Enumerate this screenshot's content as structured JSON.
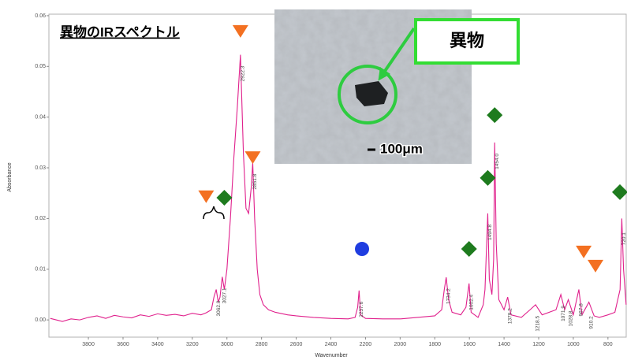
{
  "chart_data": {
    "type": "line",
    "title": "異物のIRスペクトル",
    "x_label": "Wavenumber",
    "y_label": "Absorbance",
    "xlim": [
      4028,
      690
    ],
    "ylim": [
      -0.0034,
      0.0603
    ],
    "xticks": [
      3800,
      3600,
      3400,
      3200,
      3000,
      2800,
      2600,
      2400,
      2200,
      2000,
      1800,
      1600,
      1400,
      1200,
      1000,
      800
    ],
    "yticks": [
      {
        "value": 0,
        "label": "0.00"
      },
      {
        "value": 0.01,
        "label": "0.01"
      },
      {
        "value": 0.02,
        "label": "0.02"
      },
      {
        "value": 0.03,
        "label": "0.03"
      },
      {
        "value": 0.04,
        "label": "0.04"
      },
      {
        "value": 0.05,
        "label": "0.05"
      },
      {
        "value": 0.06,
        "label": "0.06"
      }
    ],
    "grid": false,
    "series": [
      {
        "color": "#e0208c",
        "x": [
          4020,
          3950,
          3900,
          3850,
          3800,
          3750,
          3700,
          3650,
          3600,
          3550,
          3500,
          3450,
          3400,
          3350,
          3300,
          3250,
          3200,
          3150,
          3120,
          3090,
          3075,
          3062,
          3050,
          3040,
          3027,
          3015,
          3000,
          2980,
          2960,
          2940,
          2922,
          2905,
          2890,
          2875,
          2860,
          2851,
          2840,
          2825,
          2810,
          2790,
          2760,
          2720,
          2650,
          2600,
          2500,
          2400,
          2300,
          2260,
          2245,
          2237,
          2228,
          2200,
          2100,
          2000,
          1900,
          1800,
          1760,
          1745,
          1734,
          1720,
          1700,
          1650,
          1620,
          1602,
          1590,
          1550,
          1520,
          1510,
          1494,
          1485,
          1470,
          1460,
          1454,
          1445,
          1430,
          1400,
          1379,
          1360,
          1300,
          1250,
          1218,
          1180,
          1100,
          1072,
          1050,
          1029,
          1000,
          968,
          950,
          910,
          880,
          850,
          800,
          760,
          730,
          720,
          710,
          695
        ],
        "values": [
          0.0003,
          -0.0003,
          0.0002,
          0.0,
          0.0005,
          0.0008,
          0.0003,
          0.0009,
          0.0006,
          0.0004,
          0.001,
          0.0007,
          0.0012,
          0.0009,
          0.0011,
          0.0008,
          0.0013,
          0.001,
          0.0014,
          0.002,
          0.0045,
          0.006,
          0.0035,
          0.0045,
          0.0085,
          0.006,
          0.01,
          0.02,
          0.032,
          0.042,
          0.0523,
          0.033,
          0.022,
          0.021,
          0.026,
          0.031,
          0.02,
          0.01,
          0.005,
          0.003,
          0.002,
          0.0015,
          0.001,
          0.0008,
          0.0005,
          0.0003,
          0.0002,
          0.0005,
          0.0025,
          0.0058,
          0.001,
          0.0003,
          0.0002,
          0.0002,
          0.0005,
          0.0008,
          0.002,
          0.006,
          0.0084,
          0.004,
          0.0015,
          0.001,
          0.0025,
          0.0072,
          0.0015,
          0.0005,
          0.003,
          0.006,
          0.021,
          0.008,
          0.005,
          0.012,
          0.035,
          0.015,
          0.004,
          0.002,
          0.0045,
          0.001,
          0.0005,
          0.002,
          0.003,
          0.001,
          0.002,
          0.005,
          0.002,
          0.004,
          0.001,
          0.006,
          0.001,
          0.0035,
          0.0008,
          0.0005,
          0.001,
          0.0015,
          0.006,
          0.02,
          0.01,
          0.003
        ]
      }
    ],
    "peaks": [
      {
        "value": 3062,
        "label": "3062.0"
      },
      {
        "value": 3027.1,
        "label": "3027.1"
      },
      {
        "value": 2922.3,
        "label": "2922.3"
      },
      {
        "value": 2851.8,
        "label": "2851.8"
      },
      {
        "value": 2237.6,
        "label": "2237.6"
      },
      {
        "value": 1734.2,
        "label": "1734.2"
      },
      {
        "value": 1602.4,
        "label": "1602.4"
      },
      {
        "value": 1494.8,
        "label": "1494.8"
      },
      {
        "value": 1454,
        "label": "1454.0"
      },
      {
        "value": 1379.2,
        "label": "1379.2"
      },
      {
        "value": 1218.5,
        "label": "1218.5"
      },
      {
        "value": 1071.9,
        "label": "1071.9"
      },
      {
        "value": 1028.8,
        "label": "1028.8"
      },
      {
        "value": 967.8,
        "label": "967.8"
      },
      {
        "value": 910.2,
        "label": "910.2"
      },
      {
        "value": 720.1,
        "label": "720.1"
      }
    ],
    "markers": [
      {
        "x": 2922,
        "y": 0.0569,
        "shape": "triangle",
        "color": "#f37021"
      },
      {
        "x": 2851,
        "y": 0.032,
        "shape": "triangle",
        "color": "#f37021"
      },
      {
        "x": 3120,
        "y": 0.0243,
        "shape": "triangle",
        "color": "#f37021"
      },
      {
        "x": 940,
        "y": 0.0134,
        "shape": "triangle",
        "color": "#f37021"
      },
      {
        "x": 872,
        "y": 0.0106,
        "shape": "triangle",
        "color": "#f37021"
      },
      {
        "x": 3015,
        "y": 0.0241,
        "shape": "diamond",
        "color": "#1e7b1e"
      },
      {
        "x": 1602,
        "y": 0.014,
        "shape": "diamond",
        "color": "#1e7b1e"
      },
      {
        "x": 1494,
        "y": 0.028,
        "shape": "diamond",
        "color": "#1e7b1e"
      },
      {
        "x": 1454,
        "y": 0.0404,
        "shape": "diamond",
        "color": "#1e7b1e"
      },
      {
        "x": 731,
        "y": 0.0252,
        "shape": "diamond",
        "color": "#1e7b1e"
      },
      {
        "x": 2220,
        "y": 0.014,
        "shape": "circle",
        "color": "#1f3de0"
      }
    ],
    "inset": {
      "label": "異物",
      "scale": "100μm"
    }
  }
}
